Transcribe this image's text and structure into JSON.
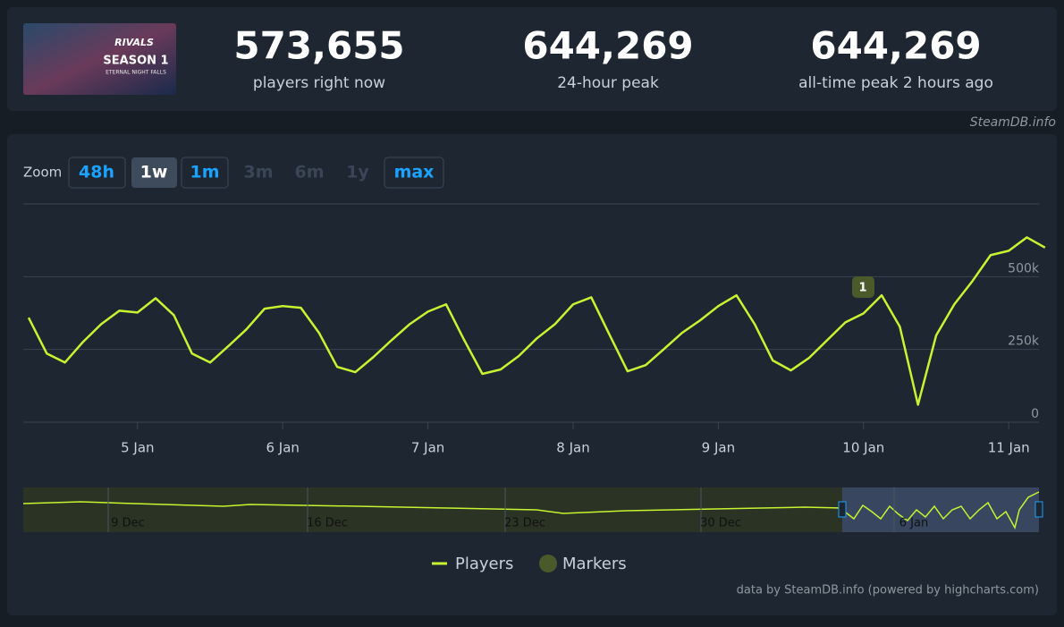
{
  "thumbnail": {
    "logo": "RIVALS",
    "season": "SEASON 1",
    "subtitle": "ETERNAL NIGHT FALLS"
  },
  "stats": [
    {
      "value": "573,655",
      "label": "players right now"
    },
    {
      "value": "644,269",
      "label": "24-hour peak"
    },
    {
      "value": "644,269",
      "label": "all-time peak 2 hours ago"
    }
  ],
  "credit": "SteamDB.info",
  "zoom": {
    "label": "Zoom",
    "buttons": [
      "48h",
      "1w",
      "1m",
      "3m",
      "6m",
      "1y",
      "max"
    ]
  },
  "marker_label": "1",
  "chart_data": {
    "type": "line",
    "x": [
      null,
      null,
      null,
      null,
      null,
      null,
      "5 Jan",
      null,
      null,
      null,
      null,
      null,
      null,
      null,
      "6 Jan",
      null,
      null,
      null,
      null,
      null,
      null,
      null,
      "7 Jan",
      null,
      null,
      null,
      null,
      null,
      null,
      null,
      "8 Jan",
      null,
      null,
      null,
      null,
      null,
      null,
      null,
      "9 Jan",
      null,
      null,
      null,
      null,
      null,
      null,
      null,
      "10 Jan",
      null,
      null,
      null,
      null,
      null,
      null,
      null,
      "11 Jan",
      null,
      null
    ],
    "series": [
      {
        "name": "Players",
        "color": "#c6f432",
        "values": [
          359000,
          236000,
          205000,
          276000,
          337000,
          383000,
          377000,
          426000,
          368000,
          236000,
          205000,
          261000,
          319000,
          390000,
          399000,
          393000,
          307000,
          190000,
          172000,
          224000,
          282000,
          337000,
          380000,
          405000,
          282000,
          166000,
          181000,
          227000,
          288000,
          337000,
          405000,
          429000,
          301000,
          175000,
          196000,
          251000,
          307000,
          350000,
          399000,
          436000,
          337000,
          212000,
          178000,
          221000,
          282000,
          343000,
          374000,
          436000,
          328000,
          60000,
          298000,
          405000,
          485000,
          574000,
          589000,
          635000,
          600000
        ]
      }
    ],
    "markers_legend": "Markers",
    "ylim": [
      0,
      750000
    ],
    "yticks": [
      {
        "value": 0,
        "label": "0"
      },
      {
        "value": 250000,
        "label": "250k"
      },
      {
        "value": 500000,
        "label": "500k"
      }
    ],
    "grid": true
  },
  "navigator": {
    "labels": [
      "9 Dec",
      "16 Dec",
      "23 Dec",
      "30 Dec",
      "6 Jan"
    ]
  },
  "footer": "data by SteamDB.info (powered by highcharts.com)"
}
